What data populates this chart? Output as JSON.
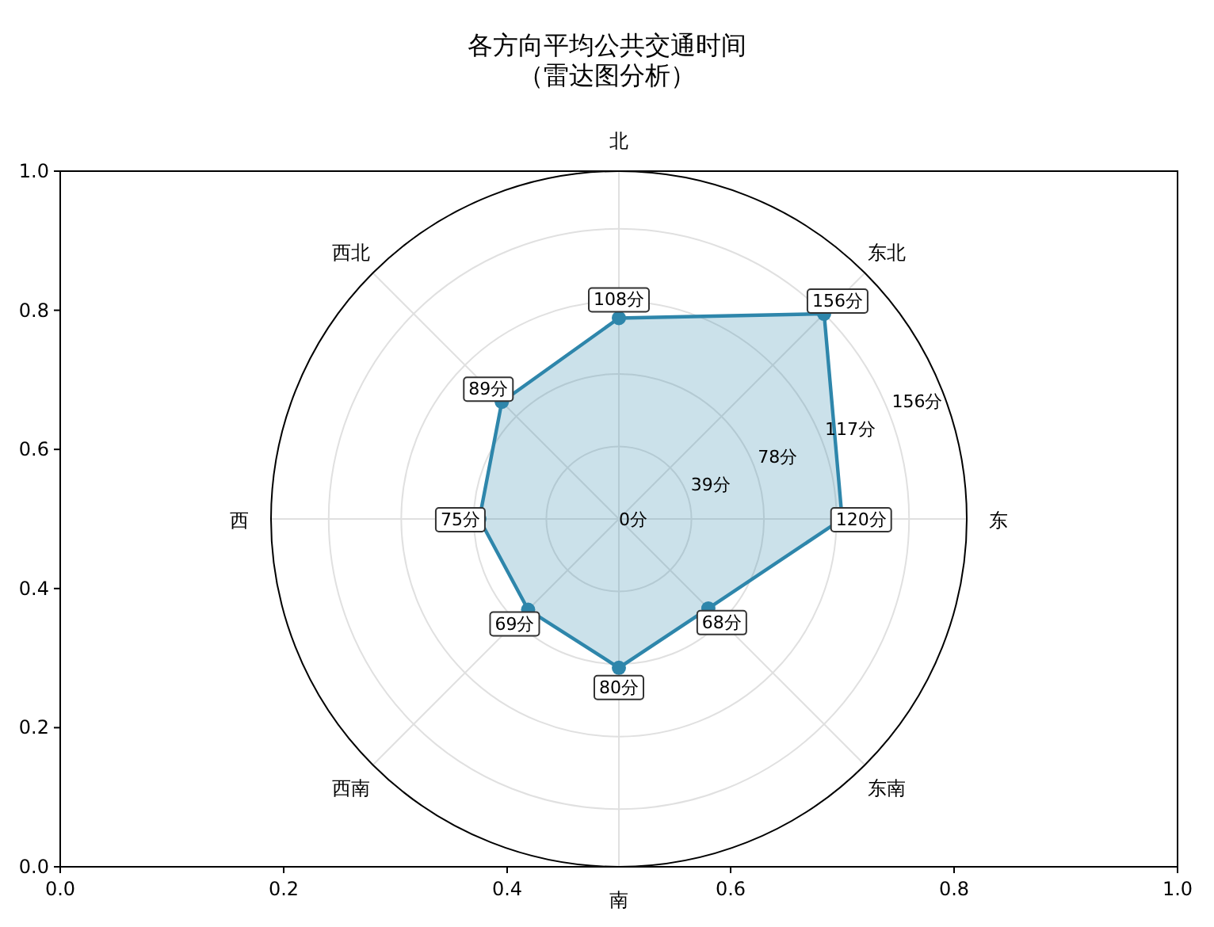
{
  "chart_data": [
    {
      "type": "radar",
      "title": "各方向平均公共交通时间",
      "subtitle": "（雷达图分析）",
      "categories": [
        "北",
        "东北",
        "东",
        "东南",
        "南",
        "西南",
        "西",
        "西北"
      ],
      "series": [
        {
          "color": "#2e86ab",
          "values": [
            108,
            156,
            120,
            68,
            80,
            69,
            75,
            89
          ],
          "value_labels": [
            "108分",
            "156分",
            "120分",
            "68分",
            "80分",
            "69分",
            "75分",
            "89分"
          ]
        }
      ],
      "ylim": [
        0,
        187
      ],
      "yticks": [
        {
          "value": 0,
          "label": "0分"
        },
        {
          "value": 39,
          "label": "39分"
        },
        {
          "value": 78,
          "label": "78分"
        },
        {
          "value": 117,
          "label": "117分"
        },
        {
          "value": 156,
          "label": "156分"
        }
      ],
      "grid": true,
      "marker": "circle"
    },
    {
      "type": "line",
      "xlim": [
        0,
        1
      ],
      "ylim": [
        0,
        1
      ],
      "xticks": [
        {
          "value": 0,
          "label": "0.0"
        },
        {
          "value": 0.2,
          "label": "0.2"
        },
        {
          "value": 0.4,
          "label": "0.4"
        },
        {
          "value": 0.6,
          "label": "0.6"
        },
        {
          "value": 0.8,
          "label": "0.8"
        },
        {
          "value": 1,
          "label": "1.0"
        }
      ],
      "yticks": [
        {
          "value": 0,
          "label": "0.0"
        },
        {
          "value": 0.2,
          "label": "0.2"
        },
        {
          "value": 0.4,
          "label": "0.4"
        },
        {
          "value": 0.6,
          "label": "0.6"
        },
        {
          "value": 0.8,
          "label": "0.8"
        },
        {
          "value": 1,
          "label": "1.0"
        }
      ]
    }
  ]
}
